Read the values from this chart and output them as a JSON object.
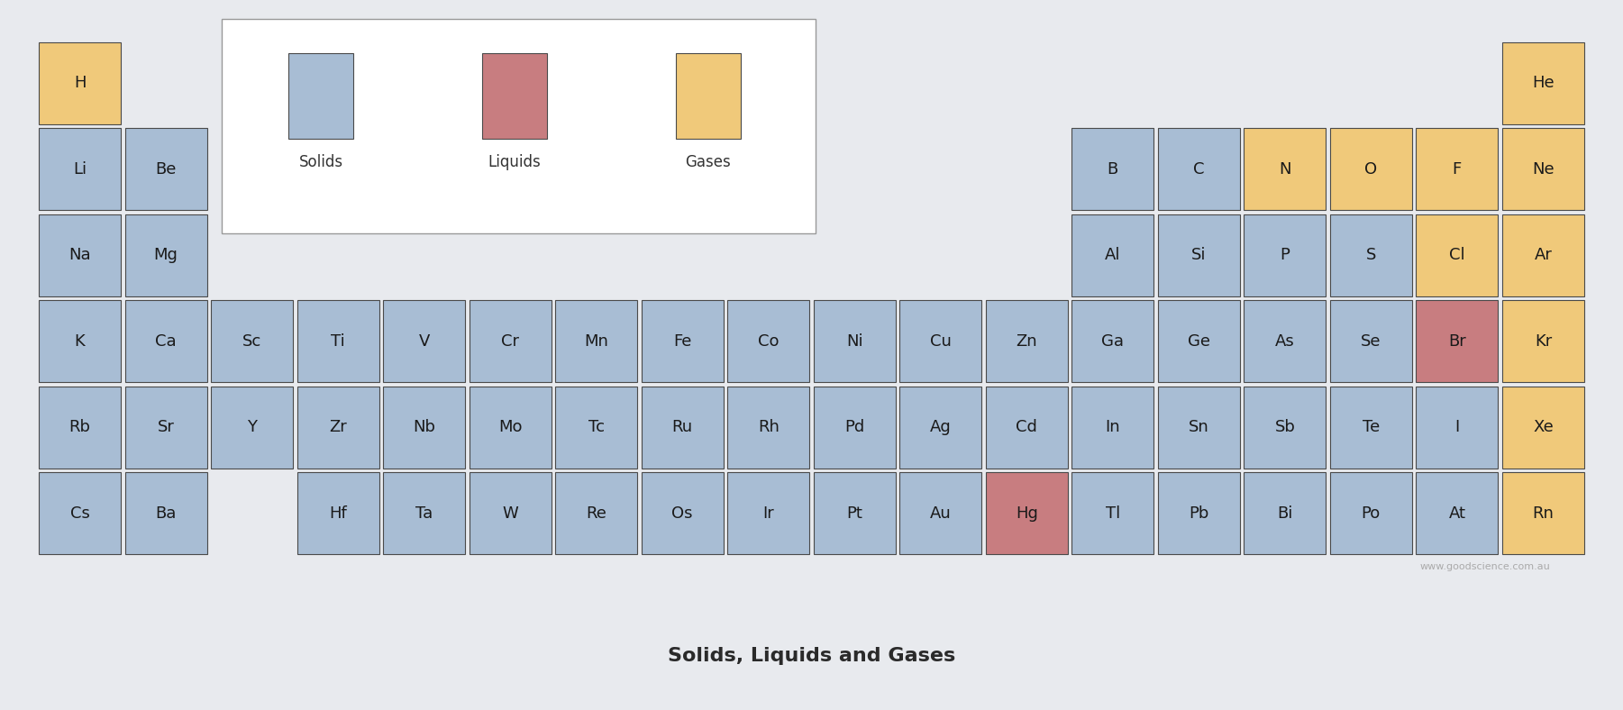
{
  "bg_color": "#e8eaee",
  "solid_color": "#a8bdd4",
  "liquid_color": "#c87d80",
  "gas_color": "#f0c97a",
  "border_color": "#4a4a4a",
  "title": "Solids, Liquids and Gases",
  "subtitle": "www.goodscience.com.au",
  "legend_items": [
    {
      "type": "solid",
      "label": "Solids"
    },
    {
      "type": "liquid",
      "label": "Liquids"
    },
    {
      "type": "gas",
      "label": "Gases"
    }
  ],
  "elements": [
    {
      "symbol": "H",
      "row": 0,
      "col": 0,
      "type": "gas"
    },
    {
      "symbol": "He",
      "row": 0,
      "col": 17,
      "type": "gas"
    },
    {
      "symbol": "Li",
      "row": 1,
      "col": 0,
      "type": "solid"
    },
    {
      "symbol": "Be",
      "row": 1,
      "col": 1,
      "type": "solid"
    },
    {
      "symbol": "B",
      "row": 1,
      "col": 12,
      "type": "solid"
    },
    {
      "symbol": "C",
      "row": 1,
      "col": 13,
      "type": "solid"
    },
    {
      "symbol": "N",
      "row": 1,
      "col": 14,
      "type": "gas"
    },
    {
      "symbol": "O",
      "row": 1,
      "col": 15,
      "type": "gas"
    },
    {
      "symbol": "F",
      "row": 1,
      "col": 16,
      "type": "gas"
    },
    {
      "symbol": "Ne",
      "row": 1,
      "col": 17,
      "type": "gas"
    },
    {
      "symbol": "Na",
      "row": 2,
      "col": 0,
      "type": "solid"
    },
    {
      "symbol": "Mg",
      "row": 2,
      "col": 1,
      "type": "solid"
    },
    {
      "symbol": "Al",
      "row": 2,
      "col": 12,
      "type": "solid"
    },
    {
      "symbol": "Si",
      "row": 2,
      "col": 13,
      "type": "solid"
    },
    {
      "symbol": "P",
      "row": 2,
      "col": 14,
      "type": "solid"
    },
    {
      "symbol": "S",
      "row": 2,
      "col": 15,
      "type": "solid"
    },
    {
      "symbol": "Cl",
      "row": 2,
      "col": 16,
      "type": "gas"
    },
    {
      "symbol": "Ar",
      "row": 2,
      "col": 17,
      "type": "gas"
    },
    {
      "symbol": "K",
      "row": 3,
      "col": 0,
      "type": "solid"
    },
    {
      "symbol": "Ca",
      "row": 3,
      "col": 1,
      "type": "solid"
    },
    {
      "symbol": "Sc",
      "row": 3,
      "col": 2,
      "type": "solid"
    },
    {
      "symbol": "Ti",
      "row": 3,
      "col": 3,
      "type": "solid"
    },
    {
      "symbol": "V",
      "row": 3,
      "col": 4,
      "type": "solid"
    },
    {
      "symbol": "Cr",
      "row": 3,
      "col": 5,
      "type": "solid"
    },
    {
      "symbol": "Mn",
      "row": 3,
      "col": 6,
      "type": "solid"
    },
    {
      "symbol": "Fe",
      "row": 3,
      "col": 7,
      "type": "solid"
    },
    {
      "symbol": "Co",
      "row": 3,
      "col": 8,
      "type": "solid"
    },
    {
      "symbol": "Ni",
      "row": 3,
      "col": 9,
      "type": "solid"
    },
    {
      "symbol": "Cu",
      "row": 3,
      "col": 10,
      "type": "solid"
    },
    {
      "symbol": "Zn",
      "row": 3,
      "col": 11,
      "type": "solid"
    },
    {
      "symbol": "Ga",
      "row": 3,
      "col": 12,
      "type": "solid"
    },
    {
      "symbol": "Ge",
      "row": 3,
      "col": 13,
      "type": "solid"
    },
    {
      "symbol": "As",
      "row": 3,
      "col": 14,
      "type": "solid"
    },
    {
      "symbol": "Se",
      "row": 3,
      "col": 15,
      "type": "solid"
    },
    {
      "symbol": "Br",
      "row": 3,
      "col": 16,
      "type": "liquid"
    },
    {
      "symbol": "Kr",
      "row": 3,
      "col": 17,
      "type": "gas"
    },
    {
      "symbol": "Rb",
      "row": 4,
      "col": 0,
      "type": "solid"
    },
    {
      "symbol": "Sr",
      "row": 4,
      "col": 1,
      "type": "solid"
    },
    {
      "symbol": "Y",
      "row": 4,
      "col": 2,
      "type": "solid"
    },
    {
      "symbol": "Zr",
      "row": 4,
      "col": 3,
      "type": "solid"
    },
    {
      "symbol": "Nb",
      "row": 4,
      "col": 4,
      "type": "solid"
    },
    {
      "symbol": "Mo",
      "row": 4,
      "col": 5,
      "type": "solid"
    },
    {
      "symbol": "Tc",
      "row": 4,
      "col": 6,
      "type": "solid"
    },
    {
      "symbol": "Ru",
      "row": 4,
      "col": 7,
      "type": "solid"
    },
    {
      "symbol": "Rh",
      "row": 4,
      "col": 8,
      "type": "solid"
    },
    {
      "symbol": "Pd",
      "row": 4,
      "col": 9,
      "type": "solid"
    },
    {
      "symbol": "Ag",
      "row": 4,
      "col": 10,
      "type": "solid"
    },
    {
      "symbol": "Cd",
      "row": 4,
      "col": 11,
      "type": "solid"
    },
    {
      "symbol": "In",
      "row": 4,
      "col": 12,
      "type": "solid"
    },
    {
      "symbol": "Sn",
      "row": 4,
      "col": 13,
      "type": "solid"
    },
    {
      "symbol": "Sb",
      "row": 4,
      "col": 14,
      "type": "solid"
    },
    {
      "symbol": "Te",
      "row": 4,
      "col": 15,
      "type": "solid"
    },
    {
      "symbol": "I",
      "row": 4,
      "col": 16,
      "type": "solid"
    },
    {
      "symbol": "Xe",
      "row": 4,
      "col": 17,
      "type": "gas"
    },
    {
      "symbol": "Cs",
      "row": 5,
      "col": 0,
      "type": "solid"
    },
    {
      "symbol": "Ba",
      "row": 5,
      "col": 1,
      "type": "solid"
    },
    {
      "symbol": "Hf",
      "row": 5,
      "col": 3,
      "type": "solid"
    },
    {
      "symbol": "Ta",
      "row": 5,
      "col": 4,
      "type": "solid"
    },
    {
      "symbol": "W",
      "row": 5,
      "col": 5,
      "type": "solid"
    },
    {
      "symbol": "Re",
      "row": 5,
      "col": 6,
      "type": "solid"
    },
    {
      "symbol": "Os",
      "row": 5,
      "col": 7,
      "type": "solid"
    },
    {
      "symbol": "Ir",
      "row": 5,
      "col": 8,
      "type": "solid"
    },
    {
      "symbol": "Pt",
      "row": 5,
      "col": 9,
      "type": "solid"
    },
    {
      "symbol": "Au",
      "row": 5,
      "col": 10,
      "type": "solid"
    },
    {
      "symbol": "Hg",
      "row": 5,
      "col": 11,
      "type": "liquid"
    },
    {
      "symbol": "Tl",
      "row": 5,
      "col": 12,
      "type": "solid"
    },
    {
      "symbol": "Pb",
      "row": 5,
      "col": 13,
      "type": "solid"
    },
    {
      "symbol": "Bi",
      "row": 5,
      "col": 14,
      "type": "solid"
    },
    {
      "symbol": "Po",
      "row": 5,
      "col": 15,
      "type": "solid"
    },
    {
      "symbol": "At",
      "row": 5,
      "col": 16,
      "type": "solid"
    },
    {
      "symbol": "Rn",
      "row": 5,
      "col": 17,
      "type": "gas"
    }
  ]
}
